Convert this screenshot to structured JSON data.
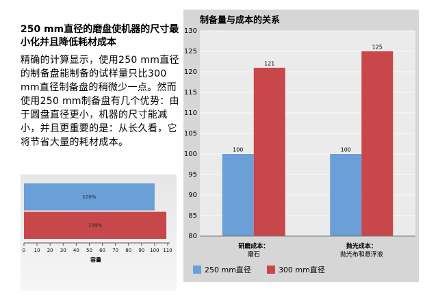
{
  "document": {
    "heading": "250 mm直径的磨盘使机器的尺寸最小化并且降低耗材成本",
    "body": "精确的计算显示，使用250 mm直径的制备盘能制备的试样量只比300 mm直径制备盘的稍微少一点。然而使用250 mm制备盘有几个优势：由于圆盘直径更小，机器的尺寸能减小，并且更重要的是：从长久看，它将节省大量的耗材成本。"
  },
  "chart_data": [
    {
      "type": "hbar",
      "xlabel": "容量",
      "categories": [
        null,
        null
      ],
      "values": [
        100,
        109
      ],
      "value_labels": [
        "100%",
        "109%"
      ],
      "colors": [
        "#6a9fd8",
        "#c8474a"
      ],
      "xlim": [
        0,
        110
      ],
      "xticks": [
        0,
        10,
        20,
        30,
        40,
        50,
        60,
        70,
        80,
        90,
        100,
        110
      ]
    },
    {
      "type": "bar",
      "title": "制备量与成本的关系",
      "categories": [
        [
          "研磨成本：",
          "磨石"
        ],
        [
          "抛光成本：",
          "抛光布和悬浮液"
        ]
      ],
      "series": [
        {
          "name": "250 mm直径",
          "color": "#6a9fd8",
          "values": [
            100,
            100
          ]
        },
        {
          "name": "300 mm直径",
          "color": "#c8474a",
          "values": [
            121,
            125
          ]
        }
      ],
      "ylim": [
        80,
        130
      ],
      "yticks": [
        80,
        85,
        90,
        95,
        100,
        105,
        110,
        115,
        120,
        125,
        130
      ],
      "grid": true,
      "legend": "bottom"
    }
  ]
}
